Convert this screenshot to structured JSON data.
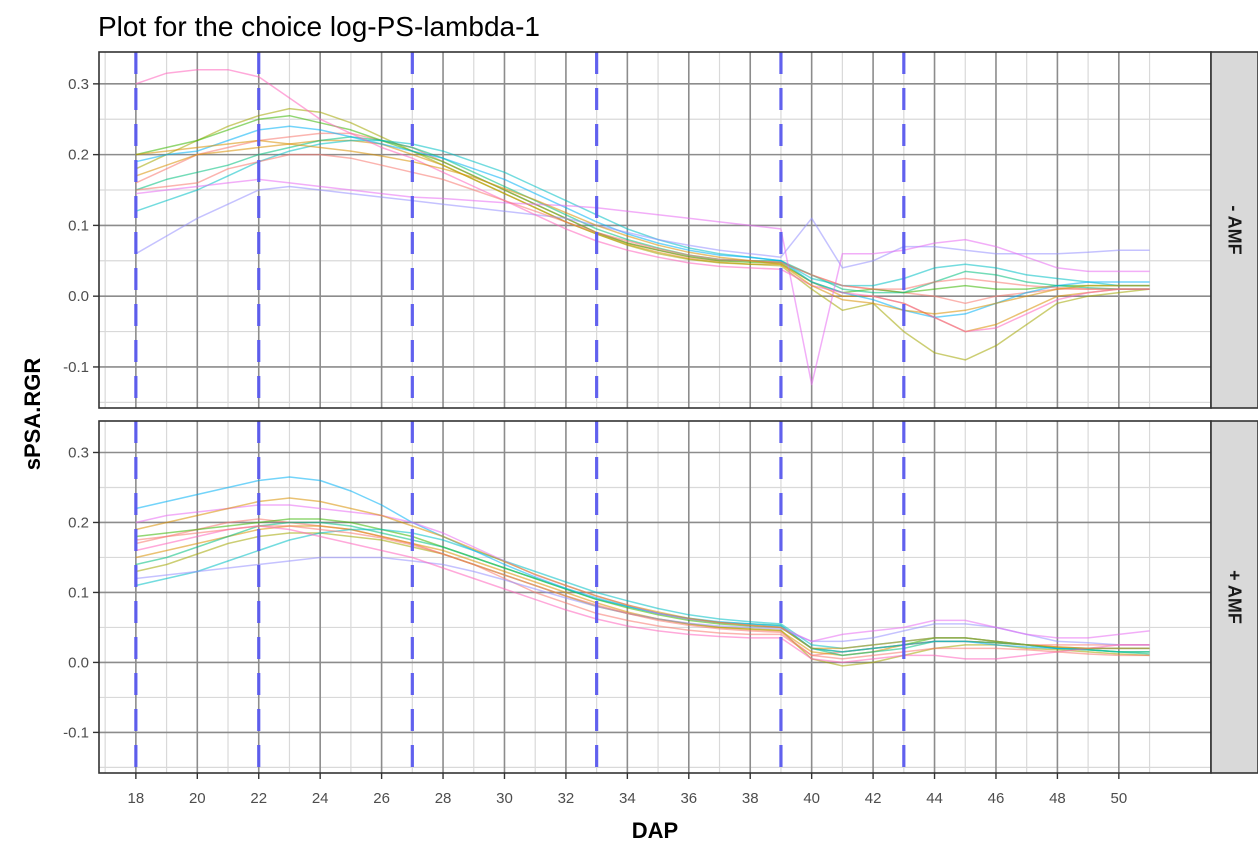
{
  "chart_data": {
    "type": "line",
    "title": "Plot for the choice log-PS-lambda-1",
    "xlabel": "DAP",
    "ylabel": "sPSA.RGR",
    "xlim": [
      16.8,
      53
    ],
    "ylim": [
      -0.158,
      0.345
    ],
    "x_ticks": [
      18,
      20,
      22,
      24,
      26,
      28,
      30,
      32,
      34,
      36,
      38,
      40,
      42,
      44,
      46,
      48,
      50
    ],
    "y_ticks": [
      -0.1,
      0.0,
      0.1,
      0.2,
      0.3
    ],
    "y_tick_labels": [
      "-0.1",
      "0.0",
      "0.1",
      "0.2",
      "0.3"
    ],
    "grid": true,
    "legend": "none",
    "vlines": [
      18,
      22,
      27,
      33,
      39,
      43
    ],
    "vline_color": "#5a5aee",
    "colors": [
      "#F8766D",
      "#D89000",
      "#A3A500",
      "#39B600",
      "#00BF7D",
      "#00BFC4",
      "#00B0F6",
      "#9590FF",
      "#E76BF3",
      "#FF62BC"
    ],
    "x": [
      18,
      19,
      20,
      21,
      22,
      23,
      24,
      25,
      26,
      27,
      28,
      29,
      30,
      31,
      32,
      33,
      34,
      35,
      36,
      37,
      38,
      39,
      40,
      41,
      42,
      43,
      44,
      45,
      46,
      47,
      48,
      49,
      50,
      51
    ],
    "panels": [
      {
        "strip": "- AMF",
        "series": [
          {
            "values": [
              0.16,
              0.18,
              0.2,
              0.21,
              0.22,
              0.225,
              0.23,
              0.23,
              0.22,
              0.21,
              0.19,
              0.17,
              0.15,
              0.13,
              0.11,
              0.09,
              0.075,
              0.065,
              0.055,
              0.05,
              0.05,
              0.048,
              0.03,
              0.015,
              0.01,
              0.005,
              0.0,
              -0.01,
              0.0,
              0.005,
              0.01,
              0.01,
              0.01,
              0.01
            ]
          },
          {
            "values": [
              0.17,
              0.185,
              0.2,
              0.205,
              0.21,
              0.215,
              0.22,
              0.22,
              0.215,
              0.2,
              0.185,
              0.165,
              0.145,
              0.125,
              0.105,
              0.088,
              0.073,
              0.062,
              0.053,
              0.048,
              0.045,
              0.045,
              0.02,
              0.0,
              0.0,
              -0.01,
              -0.03,
              -0.05,
              -0.04,
              -0.02,
              0.0,
              0.005,
              0.01,
              0.01
            ]
          },
          {
            "values": [
              0.18,
              0.2,
              0.22,
              0.24,
              0.255,
              0.265,
              0.26,
              0.245,
              0.225,
              0.205,
              0.185,
              0.165,
              0.145,
              0.125,
              0.105,
              0.088,
              0.072,
              0.06,
              0.052,
              0.047,
              0.045,
              0.043,
              0.01,
              -0.02,
              -0.01,
              -0.05,
              -0.08,
              -0.09,
              -0.07,
              -0.04,
              -0.01,
              0.0,
              0.005,
              0.01
            ]
          },
          {
            "values": [
              0.2,
              0.21,
              0.22,
              0.235,
              0.25,
              0.255,
              0.245,
              0.235,
              0.22,
              0.205,
              0.19,
              0.17,
              0.15,
              0.13,
              0.11,
              0.09,
              0.075,
              0.065,
              0.056,
              0.05,
              0.048,
              0.047,
              0.02,
              0.005,
              0.01,
              0.005,
              0.01,
              0.015,
              0.01,
              0.01,
              0.015,
              0.015,
              0.015,
              0.015
            ]
          },
          {
            "values": [
              0.15,
              0.165,
              0.175,
              0.185,
              0.2,
              0.21,
              0.22,
              0.225,
              0.22,
              0.21,
              0.195,
              0.175,
              0.155,
              0.135,
              0.115,
              0.095,
              0.08,
              0.068,
              0.058,
              0.052,
              0.05,
              0.05,
              0.03,
              0.01,
              0.005,
              0.005,
              0.02,
              0.035,
              0.03,
              0.02,
              0.015,
              0.012,
              0.01,
              0.01
            ]
          },
          {
            "values": [
              0.12,
              0.135,
              0.15,
              0.17,
              0.19,
              0.205,
              0.215,
              0.22,
              0.22,
              0.215,
              0.205,
              0.19,
              0.175,
              0.155,
              0.135,
              0.115,
              0.095,
              0.08,
              0.068,
              0.06,
              0.055,
              0.05,
              0.025,
              0.015,
              0.015,
              0.025,
              0.04,
              0.045,
              0.04,
              0.03,
              0.025,
              0.02,
              0.015,
              0.015
            ]
          },
          {
            "values": [
              0.19,
              0.2,
              0.205,
              0.22,
              0.235,
              0.24,
              0.235,
              0.225,
              0.215,
              0.205,
              0.195,
              0.18,
              0.165,
              0.145,
              0.125,
              0.105,
              0.088,
              0.075,
              0.065,
              0.058,
              0.055,
              0.05,
              0.02,
              0.005,
              -0.005,
              -0.02,
              -0.03,
              -0.025,
              -0.01,
              0.005,
              0.015,
              0.02,
              0.02,
              0.02
            ]
          },
          {
            "values": [
              0.06,
              0.085,
              0.11,
              0.13,
              0.15,
              0.155,
              0.15,
              0.145,
              0.14,
              0.135,
              0.13,
              0.125,
              0.12,
              0.115,
              0.11,
              0.1,
              0.09,
              0.08,
              0.072,
              0.065,
              0.06,
              0.055,
              0.11,
              0.04,
              0.05,
              0.07,
              0.07,
              0.065,
              0.06,
              0.06,
              0.06,
              0.062,
              0.065,
              0.065
            ]
          },
          {
            "values": [
              0.145,
              0.15,
              0.155,
              0.16,
              0.165,
              0.16,
              0.155,
              0.15,
              0.145,
              0.14,
              0.138,
              0.135,
              0.132,
              0.13,
              0.128,
              0.125,
              0.12,
              0.115,
              0.11,
              0.105,
              0.1,
              0.095,
              -0.125,
              0.06,
              0.06,
              0.065,
              0.075,
              0.08,
              0.07,
              0.055,
              0.04,
              0.035,
              0.035,
              0.035
            ]
          },
          {
            "values": [
              0.3,
              0.315,
              0.32,
              0.32,
              0.31,
              0.28,
              0.25,
              0.23,
              0.21,
              0.195,
              0.175,
              0.155,
              0.135,
              0.115,
              0.095,
              0.078,
              0.065,
              0.055,
              0.047,
              0.042,
              0.04,
              0.038,
              0.015,
              0.005,
              0.0,
              -0.01,
              -0.03,
              -0.05,
              -0.045,
              -0.025,
              -0.005,
              0.005,
              0.01,
              0.01
            ]
          },
          {
            "values": [
              0.15,
              0.155,
              0.16,
              0.18,
              0.19,
              0.2,
              0.2,
              0.195,
              0.185,
              0.175,
              0.165,
              0.15,
              0.135,
              0.12,
              0.105,
              0.09,
              0.078,
              0.067,
              0.058,
              0.052,
              0.05,
              0.048,
              0.03,
              0.015,
              0.01,
              0.01,
              0.02,
              0.025,
              0.02,
              0.015,
              0.012,
              0.01,
              0.01,
              0.01
            ]
          },
          {
            "values": [
              0.2,
              0.205,
              0.21,
              0.215,
              0.22,
              0.215,
              0.21,
              0.205,
              0.198,
              0.19,
              0.18,
              0.168,
              0.152,
              0.136,
              0.118,
              0.1,
              0.085,
              0.072,
              0.062,
              0.055,
              0.05,
              0.045,
              0.015,
              -0.005,
              -0.01,
              -0.02,
              -0.025,
              -0.02,
              -0.01,
              0.0,
              0.01,
              0.015,
              0.015,
              0.015
            ]
          }
        ]
      },
      {
        "strip": "+ AMF",
        "series": [
          {
            "values": [
              0.17,
              0.18,
              0.19,
              0.2,
              0.205,
              0.2,
              0.195,
              0.19,
              0.18,
              0.17,
              0.155,
              0.14,
              0.12,
              0.1,
              0.085,
              0.07,
              0.06,
              0.052,
              0.046,
              0.042,
              0.04,
              0.04,
              0.01,
              0.015,
              0.02,
              0.025,
              0.03,
              0.03,
              0.028,
              0.025,
              0.025,
              0.025,
              0.025,
              0.025
            ]
          },
          {
            "values": [
              0.15,
              0.16,
              0.17,
              0.18,
              0.19,
              0.195,
              0.195,
              0.19,
              0.18,
              0.17,
              0.16,
              0.145,
              0.13,
              0.115,
              0.1,
              0.085,
              0.072,
              0.062,
              0.055,
              0.05,
              0.047,
              0.045,
              0.015,
              0.01,
              0.015,
              0.025,
              0.03,
              0.03,
              0.028,
              0.025,
              0.022,
              0.02,
              0.02,
              0.02
            ]
          },
          {
            "values": [
              0.13,
              0.14,
              0.155,
              0.17,
              0.18,
              0.185,
              0.185,
              0.18,
              0.175,
              0.165,
              0.155,
              0.14,
              0.125,
              0.11,
              0.095,
              0.08,
              0.07,
              0.062,
              0.055,
              0.05,
              0.048,
              0.046,
              0.005,
              -0.005,
              0.0,
              0.01,
              0.02,
              0.025,
              0.025,
              0.02,
              0.018,
              0.015,
              0.012,
              0.01
            ]
          },
          {
            "values": [
              0.18,
              0.185,
              0.19,
              0.195,
              0.2,
              0.205,
              0.205,
              0.2,
              0.19,
              0.18,
              0.165,
              0.15,
              0.135,
              0.12,
              0.105,
              0.09,
              0.078,
              0.068,
              0.06,
              0.055,
              0.052,
              0.05,
              0.02,
              0.015,
              0.02,
              0.025,
              0.035,
              0.035,
              0.03,
              0.025,
              0.02,
              0.018,
              0.015,
              0.015
            ]
          },
          {
            "values": [
              0.14,
              0.15,
              0.165,
              0.18,
              0.195,
              0.2,
              0.2,
              0.195,
              0.185,
              0.175,
              0.165,
              0.15,
              0.135,
              0.12,
              0.105,
              0.09,
              0.08,
              0.07,
              0.062,
              0.057,
              0.055,
              0.053,
              0.02,
              0.01,
              0.015,
              0.02,
              0.03,
              0.03,
              0.028,
              0.025,
              0.02,
              0.018,
              0.015,
              0.012
            ]
          },
          {
            "values": [
              0.11,
              0.12,
              0.13,
              0.145,
              0.16,
              0.175,
              0.185,
              0.19,
              0.19,
              0.185,
              0.175,
              0.16,
              0.145,
              0.13,
              0.115,
              0.1,
              0.088,
              0.077,
              0.068,
              0.062,
              0.058,
              0.055,
              0.025,
              0.02,
              0.025,
              0.03,
              0.035,
              0.035,
              0.03,
              0.025,
              0.02,
              0.018,
              0.015,
              0.015
            ]
          },
          {
            "values": [
              0.22,
              0.23,
              0.24,
              0.25,
              0.26,
              0.265,
              0.26,
              0.245,
              0.225,
              0.2,
              0.18,
              0.16,
              0.14,
              0.122,
              0.106,
              0.092,
              0.08,
              0.07,
              0.063,
              0.058,
              0.055,
              0.052,
              0.02,
              0.015,
              0.02,
              0.025,
              0.03,
              0.03,
              0.025,
              0.022,
              0.02,
              0.02,
              0.02,
              0.02
            ]
          },
          {
            "values": [
              0.12,
              0.125,
              0.13,
              0.135,
              0.14,
              0.145,
              0.15,
              0.15,
              0.15,
              0.145,
              0.14,
              0.13,
              0.118,
              0.105,
              0.092,
              0.08,
              0.07,
              0.062,
              0.056,
              0.052,
              0.05,
              0.048,
              0.03,
              0.03,
              0.035,
              0.045,
              0.055,
              0.055,
              0.05,
              0.04,
              0.03,
              0.028,
              0.025,
              0.025
            ]
          },
          {
            "values": [
              0.2,
              0.21,
              0.215,
              0.22,
              0.225,
              0.225,
              0.22,
              0.215,
              0.21,
              0.2,
              0.185,
              0.165,
              0.145,
              0.125,
              0.11,
              0.095,
              0.082,
              0.07,
              0.062,
              0.057,
              0.053,
              0.05,
              0.03,
              0.04,
              0.045,
              0.05,
              0.06,
              0.06,
              0.05,
              0.04,
              0.035,
              0.035,
              0.04,
              0.045
            ]
          },
          {
            "values": [
              0.16,
              0.17,
              0.18,
              0.19,
              0.195,
              0.19,
              0.18,
              0.17,
              0.16,
              0.15,
              0.135,
              0.12,
              0.105,
              0.09,
              0.075,
              0.062,
              0.052,
              0.045,
              0.04,
              0.037,
              0.035,
              0.035,
              0.005,
              0.0,
              0.005,
              0.01,
              0.01,
              0.005,
              0.005,
              0.01,
              0.015,
              0.02,
              0.025,
              0.025
            ]
          },
          {
            "values": [
              0.175,
              0.18,
              0.185,
              0.19,
              0.195,
              0.195,
              0.19,
              0.185,
              0.178,
              0.168,
              0.155,
              0.14,
              0.125,
              0.11,
              0.095,
              0.082,
              0.07,
              0.06,
              0.053,
              0.048,
              0.045,
              0.043,
              0.01,
              0.005,
              0.01,
              0.015,
              0.02,
              0.02,
              0.02,
              0.018,
              0.015,
              0.012,
              0.01,
              0.01
            ]
          },
          {
            "values": [
              0.19,
              0.2,
              0.21,
              0.22,
              0.23,
              0.235,
              0.23,
              0.22,
              0.21,
              0.195,
              0.18,
              0.162,
              0.144,
              0.126,
              0.11,
              0.095,
              0.082,
              0.072,
              0.063,
              0.057,
              0.053,
              0.05,
              0.02,
              0.02,
              0.025,
              0.03,
              0.035,
              0.035,
              0.03,
              0.025,
              0.022,
              0.02,
              0.02,
              0.02
            ]
          }
        ]
      }
    ]
  }
}
